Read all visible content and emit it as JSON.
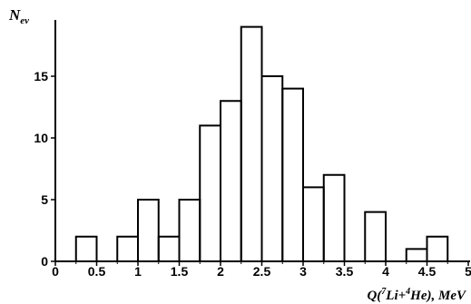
{
  "chart_data": {
    "type": "bar",
    "style": "histogram-step-outline",
    "bin_width": 0.25,
    "bin_starts": [
      0,
      0.25,
      0.5,
      0.75,
      1.0,
      1.25,
      1.5,
      1.75,
      2.0,
      2.25,
      2.5,
      2.75,
      3.0,
      3.25,
      3.5,
      3.75,
      4.0,
      4.25,
      4.5,
      4.75
    ],
    "values": [
      0,
      2,
      0,
      2,
      5,
      2,
      5,
      11,
      13,
      19,
      15,
      14,
      6,
      7,
      0,
      4,
      0,
      1,
      2,
      0
    ],
    "xlim": [
      0,
      5
    ],
    "ylim": [
      0,
      20
    ],
    "x_ticks": [
      "0",
      "0.5",
      "1",
      "1.5",
      "2",
      "2.5",
      "3",
      "3.5",
      "4",
      "4.5",
      "5"
    ],
    "y_ticks": [
      "0",
      "5",
      "10",
      "15"
    ],
    "ylabel": {
      "main": "N",
      "sub": "ev"
    },
    "xlabel": {
      "prefix": "Q(",
      "sup1": "7",
      "mid": "Li+",
      "sup2": "4",
      "suffix": "He), MeV"
    },
    "grid": false,
    "line_color": "#000000"
  }
}
